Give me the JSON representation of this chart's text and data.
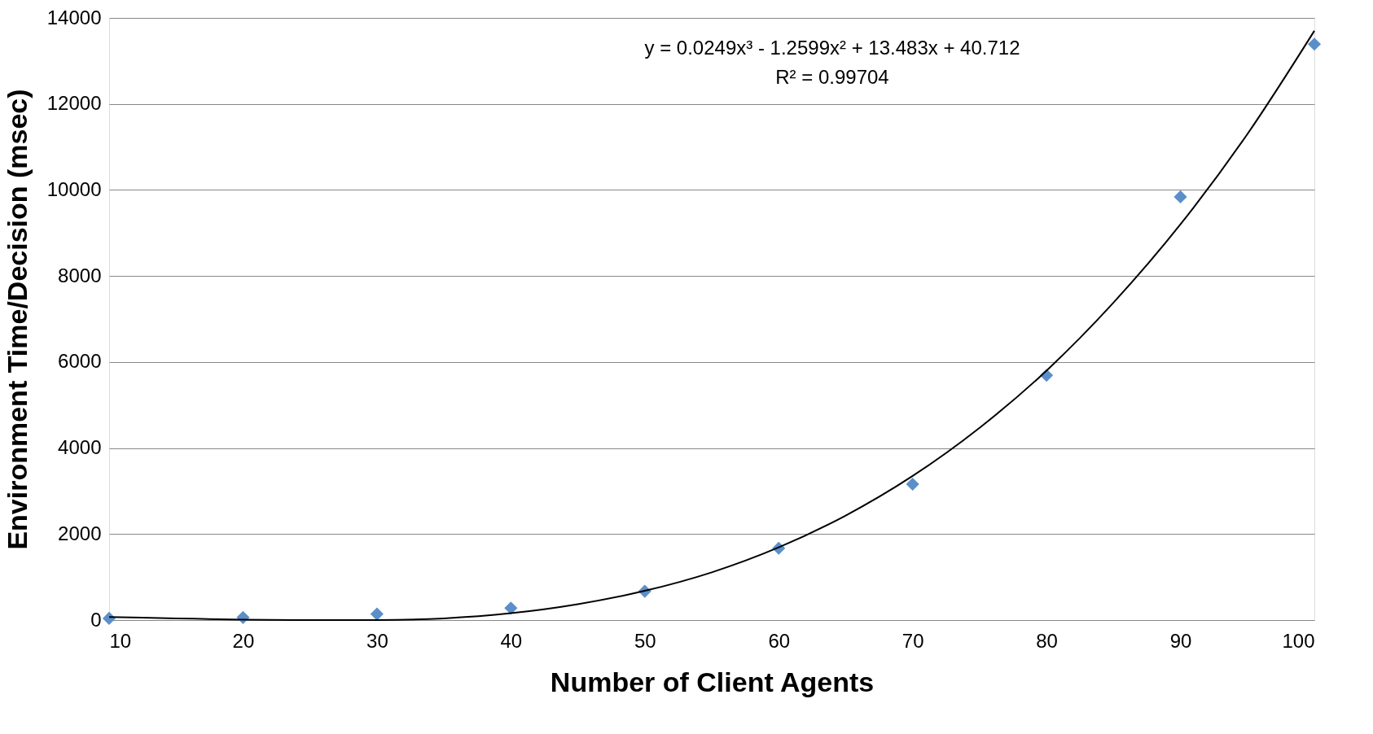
{
  "chart_data": {
    "type": "scatter",
    "xlabel": "Number of Client Agents",
    "ylabel": "Environment Time/Decision (msec)",
    "annotations": [
      "y = 0.0249x³ - 1.2599x² + 13.483x + 40.712",
      "R² = 0.99704"
    ],
    "xlim": [
      10,
      100
    ],
    "xticks": [
      10,
      20,
      30,
      40,
      50,
      60,
      70,
      80,
      90,
      100
    ],
    "ylim": [
      0,
      14000
    ],
    "yticks": [
      0,
      2000,
      4000,
      6000,
      8000,
      10000,
      12000,
      14000
    ],
    "grid": "y",
    "series": [
      {
        "color": "#5b8fc9",
        "marker": "diamond",
        "x": [
          10,
          20,
          30,
          40,
          50,
          60,
          70,
          80,
          90,
          100
        ],
        "values": [
          40,
          60,
          140,
          280,
          670,
          1670,
          3160,
          5690,
          9840,
          13390
        ]
      },
      {
        "type": "line",
        "color": "#000000",
        "line_style": "solid",
        "x": [
          10,
          15,
          20,
          25,
          30,
          35,
          40,
          45,
          50,
          55,
          60,
          65,
          70,
          75,
          80,
          85,
          90,
          95,
          100
        ],
        "values": [
          70,
          40,
          10,
          0,
          0,
          40,
          160,
          370,
          680,
          1110,
          1690,
          2430,
          3350,
          4470,
          5800,
          7380,
          9200,
          11300,
          13700
        ]
      }
    ]
  }
}
